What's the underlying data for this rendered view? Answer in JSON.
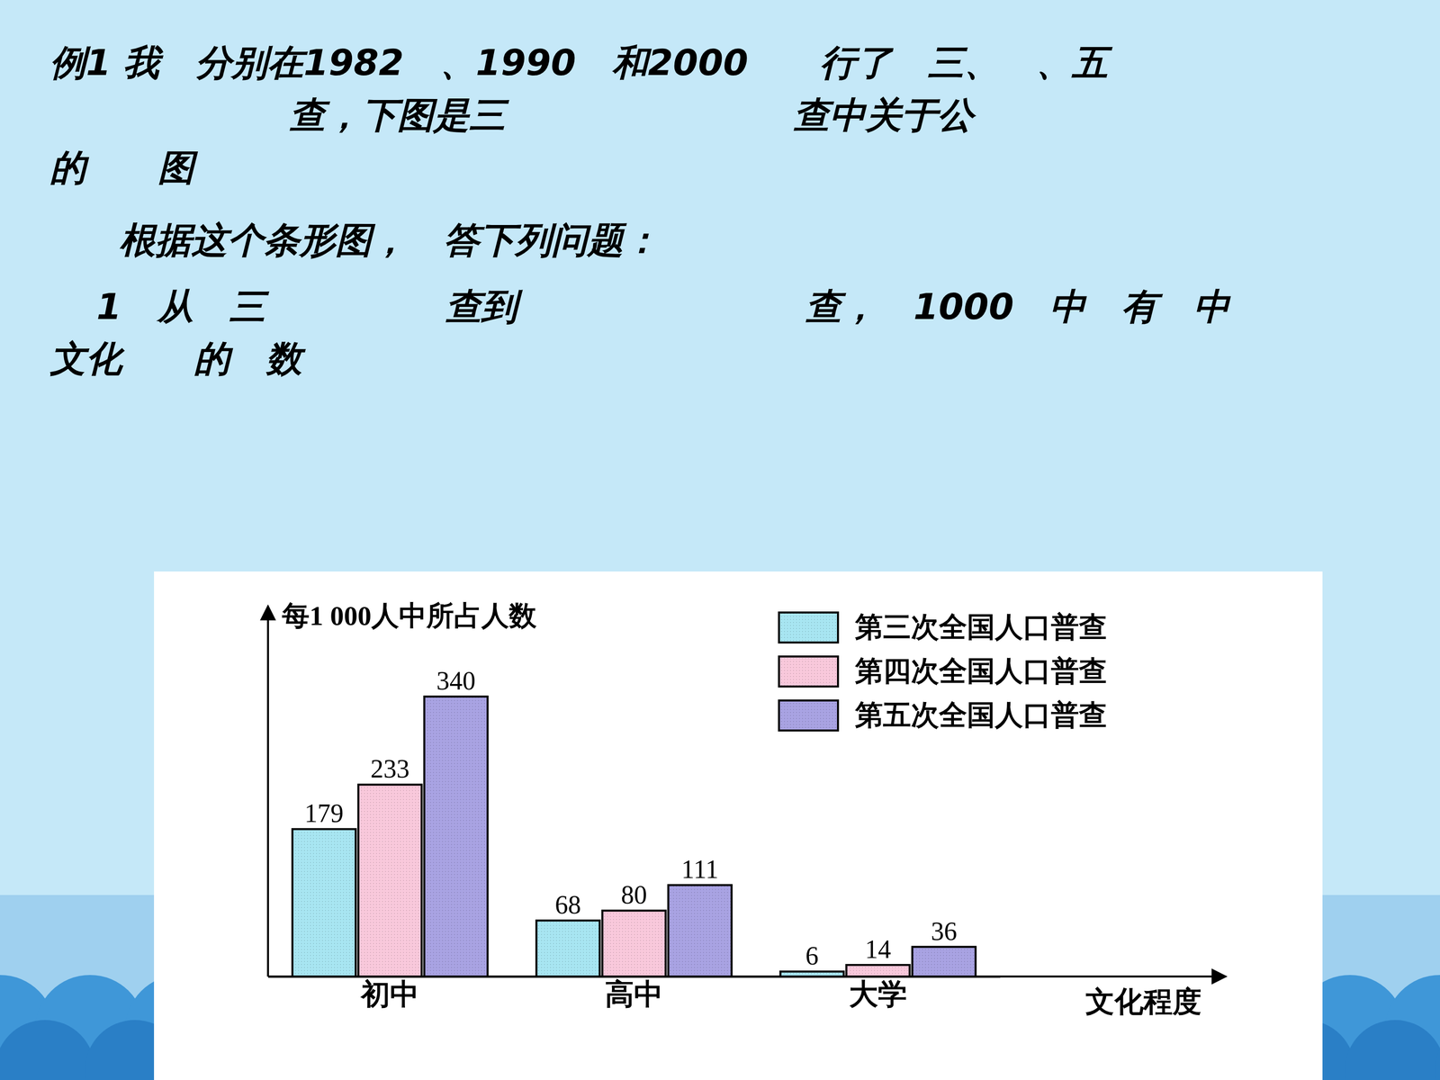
{
  "slide": {
    "lines": [
      "例1 我　分别在1982　、1990　和2000　　行了　三、　、五",
      "查，下图是三　　　　　　　　查中关于公",
      "的　　图",
      "根据这个条形图，　答下列问题：",
      "1　从　三　　　　　查到　　　　　　　　查，　1000　中　有　中",
      "文化　　的　数"
    ]
  },
  "chart_data": {
    "type": "bar",
    "y_label": "每1 000人中所占人数",
    "x_label": "文化程度",
    "categories": [
      "初中",
      "高中",
      "大学"
    ],
    "series": [
      {
        "name": "第三次全国人口普查",
        "color": "#a8e6f2",
        "values": [
          179,
          68,
          6
        ]
      },
      {
        "name": "第四次全国人口普查",
        "color": "#f9c9dc",
        "values": [
          233,
          80,
          14
        ]
      },
      {
        "name": "第五次全国人口普查",
        "color": "#a9a3e3",
        "values": [
          340,
          111,
          36
        ]
      }
    ],
    "ylim": [
      0,
      450
    ],
    "data_labels": true,
    "tick_labels": "x",
    "legend": "top-right"
  }
}
